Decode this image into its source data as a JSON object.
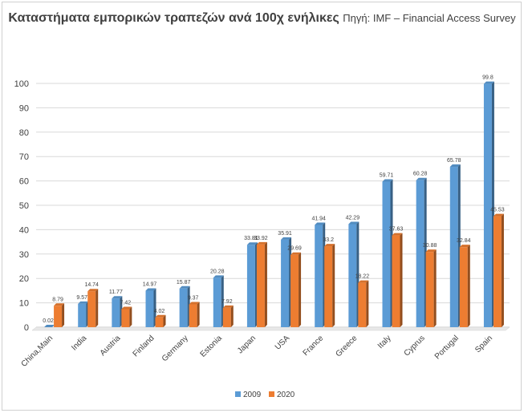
{
  "chart_data": {
    "type": "bar",
    "title": "Καταστήματα εμπορικών τραπεζών ανά 100χ ενήλικες",
    "subtitle": "Πηγή: IMF – Financial Access Survey",
    "categories": [
      "China,Main",
      "India",
      "Austria",
      "Finland",
      "Germany",
      "Estonia",
      "Japan",
      "USA",
      "France",
      "Greece",
      "Italy",
      "Cyprus",
      "Portugal",
      "Spain"
    ],
    "series": [
      {
        "name": "2009",
        "color": "#5b9bd5",
        "values": [
          0.02,
          9.57,
          11.77,
          14.97,
          15.87,
          20.28,
          33.81,
          35.91,
          41.94,
          42.29,
          59.71,
          60.28,
          65.78,
          99.8
        ],
        "labels": [
          "0.02",
          "9.57",
          "11.77",
          "14.97",
          "15.87",
          "20.28",
          "33.81",
          "35.91",
          "41.94",
          "42.29",
          "59.71",
          "60.28",
          "65.78",
          "99.8"
        ]
      },
      {
        "name": "2020",
        "color": "#ed7d31",
        "values": [
          8.79,
          14.74,
          7.42,
          4.02,
          9.37,
          7.92,
          33.92,
          29.69,
          33.2,
          18.22,
          37.63,
          30.88,
          32.84,
          45.53
        ],
        "labels": [
          "8.79",
          "14.74",
          "7.42",
          "4.02",
          "9.37",
          "7.92",
          "33.92",
          "29.69",
          "33.2",
          "18.22",
          "37.63",
          "30.88",
          "32.84",
          "45.53"
        ]
      }
    ],
    "ylim": [
      0,
      100
    ],
    "yticks": [
      0,
      10,
      20,
      30,
      40,
      50,
      60,
      70,
      80,
      90,
      100
    ],
    "grid": true,
    "legend": "bottom"
  }
}
